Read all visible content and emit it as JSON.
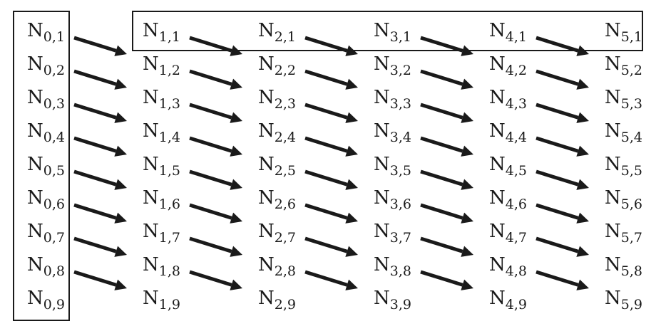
{
  "diagram": {
    "symbol": "N",
    "columns": [
      "0",
      "1",
      "2",
      "3",
      "4",
      "5"
    ],
    "rows": [
      "1",
      "2",
      "3",
      "4",
      "5",
      "6",
      "7",
      "8",
      "9"
    ],
    "highlighted_column": "0",
    "highlighted_row": "1",
    "arrows": "each N_i,j points to N_i+1,j+1 (drawn between adjacent columns)",
    "colors": {
      "ink": "#1a1a1a",
      "background": "#ffffff"
    }
  }
}
